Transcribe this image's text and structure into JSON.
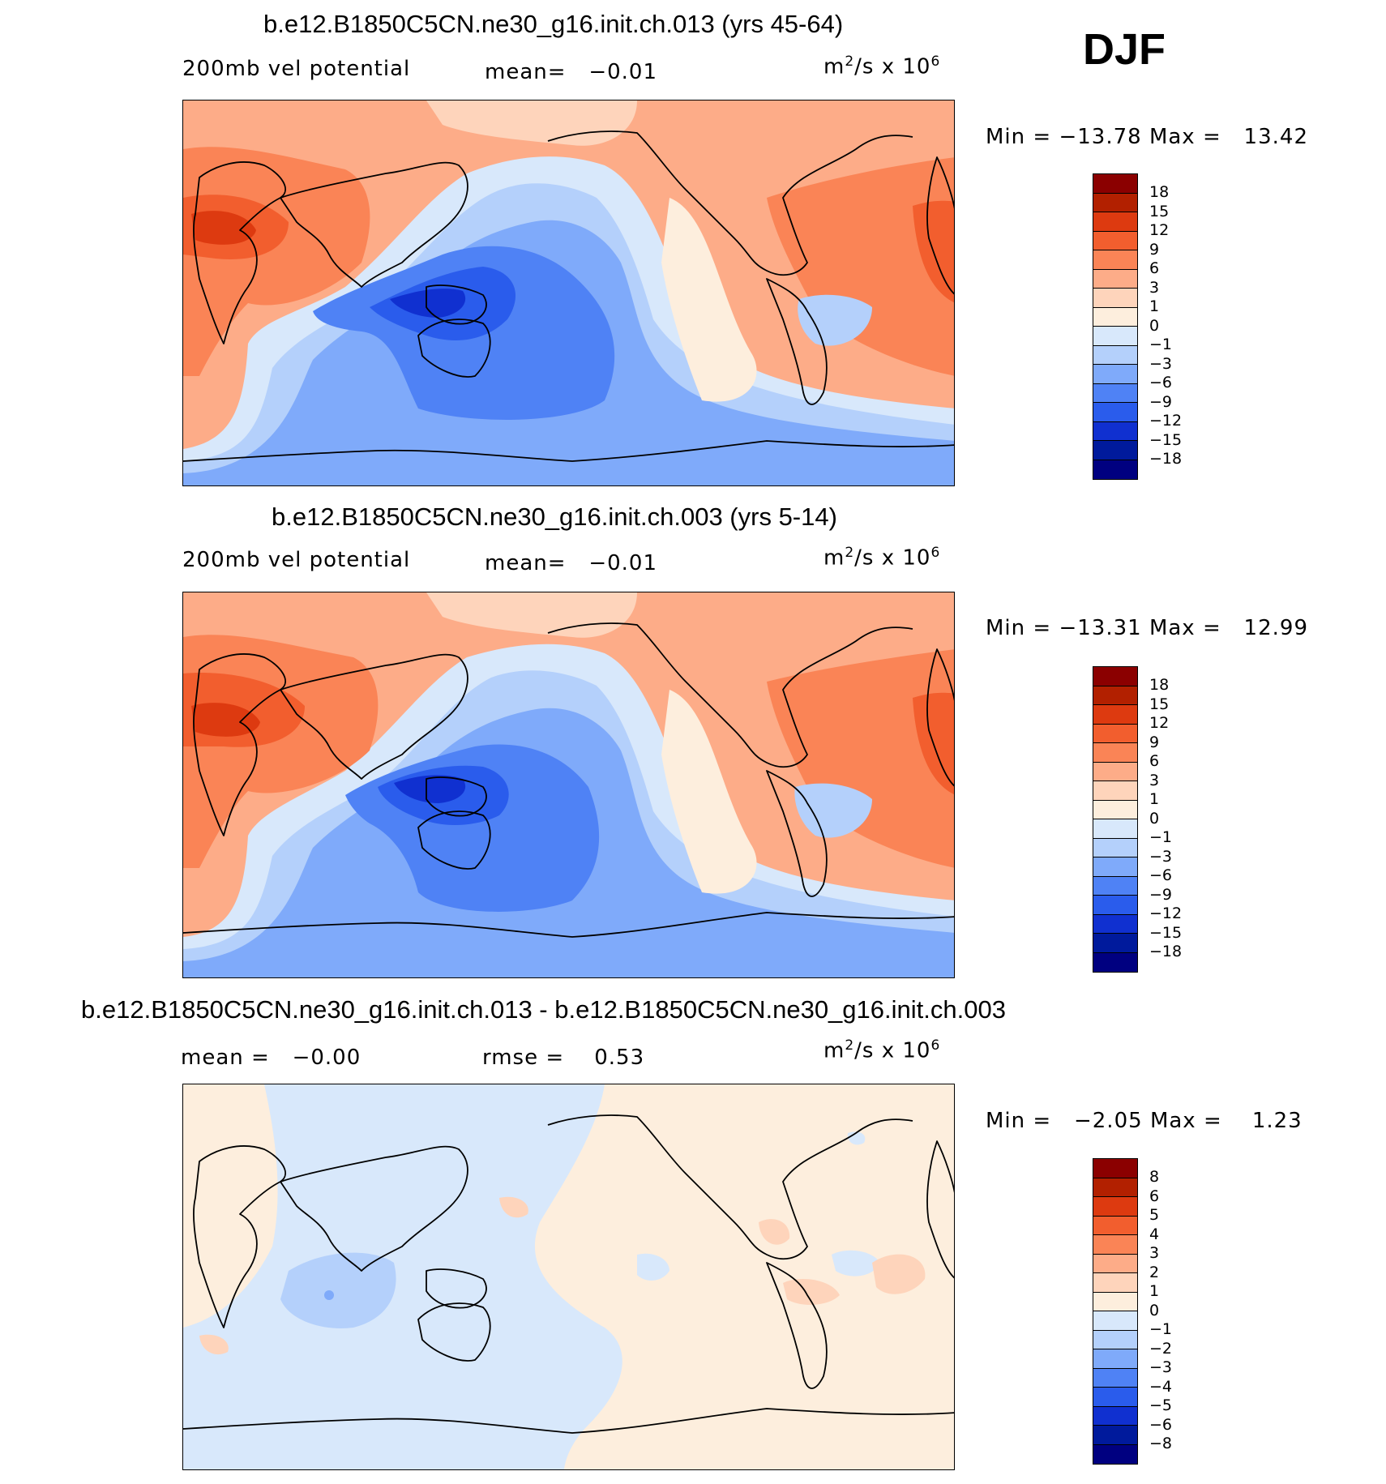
{
  "season": "DJF",
  "panels": [
    {
      "title": "b.e12.B1850C5CN.ne30_g16.init.ch.013 (yrs 45-64)",
      "variable": "200mb vel potential",
      "stat1": "mean=",
      "stat1_value": "−0.01",
      "stat2": "",
      "stat2_value": "",
      "units_base": "m",
      "units_mid": "/s x 10",
      "units_exp1": "2",
      "units_exp2": "6",
      "minmax": {
        "min_label": "Min =",
        "min": "−13.78",
        "max_label": "Max =",
        "max": "13.42"
      },
      "colorbar": {
        "labels": [
          "18",
          "15",
          "12",
          "9",
          "6",
          "3",
          "1",
          "0",
          "−1",
          "−3",
          "−6",
          "−9",
          "−12",
          "−15",
          "−18"
        ],
        "colors": [
          "#8b0000",
          "#b22000",
          "#dd3a10",
          "#f25e2e",
          "#fa8456",
          "#fdac88",
          "#fed4bb",
          "#fdeedd",
          "#d8e8fb",
          "#b4d0fb",
          "#7faafa",
          "#4f82f5",
          "#2a5cec",
          "#1030d0",
          "#001a9c",
          "#000080"
        ]
      }
    },
    {
      "title": "b.e12.B1850C5CN.ne30_g16.init.ch.003 (yrs 5-14)",
      "variable": "200mb vel potential",
      "stat1": "mean=",
      "stat1_value": "−0.01",
      "stat2": "",
      "stat2_value": "",
      "units_base": "m",
      "units_mid": "/s x 10",
      "units_exp1": "2",
      "units_exp2": "6",
      "minmax": {
        "min_label": "Min =",
        "min": "−13.31",
        "max_label": "Max =",
        "max": "12.99"
      },
      "colorbar": {
        "labels": [
          "18",
          "15",
          "12",
          "9",
          "6",
          "3",
          "1",
          "0",
          "−1",
          "−3",
          "−6",
          "−9",
          "−12",
          "−15",
          "−18"
        ],
        "colors": [
          "#8b0000",
          "#b22000",
          "#dd3a10",
          "#f25e2e",
          "#fa8456",
          "#fdac88",
          "#fed4bb",
          "#fdeedd",
          "#d8e8fb",
          "#b4d0fb",
          "#7faafa",
          "#4f82f5",
          "#2a5cec",
          "#1030d0",
          "#001a9c",
          "#000080"
        ]
      }
    },
    {
      "title": "b.e12.B1850C5CN.ne30_g16.init.ch.013 - b.e12.B1850C5CN.ne30_g16.init.ch.003",
      "variable": "",
      "stat1": "mean =",
      "stat1_value": "−0.00",
      "stat2": "rmse =",
      "stat2_value": "0.53",
      "units_base": "m",
      "units_mid": "/s x 10",
      "units_exp1": "2",
      "units_exp2": "6",
      "minmax": {
        "min_label": "Min =",
        "min": "−2.05",
        "max_label": "Max =",
        "max": "1.23"
      },
      "colorbar": {
        "labels": [
          "8",
          "6",
          "5",
          "4",
          "3",
          "2",
          "1",
          "0",
          "−1",
          "−2",
          "−3",
          "−4",
          "−5",
          "−6",
          "−8"
        ],
        "colors": [
          "#8b0000",
          "#b22000",
          "#dd3a10",
          "#f25e2e",
          "#fa8456",
          "#fdac88",
          "#fed4bb",
          "#fdeedd",
          "#d8e8fb",
          "#b4d0fb",
          "#7faafa",
          "#4f82f5",
          "#2a5cec",
          "#1030d0",
          "#001a9c",
          "#000080"
        ]
      }
    }
  ]
}
